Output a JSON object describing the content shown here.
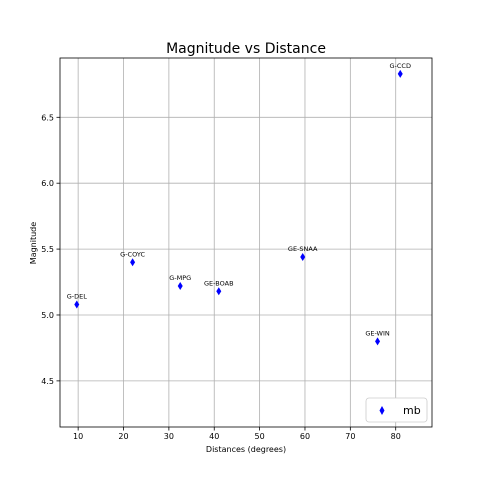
{
  "chart_data": {
    "type": "scatter",
    "title": "Magnitude vs Distance",
    "xlabel": "Distances (degrees)",
    "ylabel": "Magnitude",
    "xlim": [
      6,
      88
    ],
    "ylim": [
      4.15,
      6.95
    ],
    "xticks": [
      10,
      20,
      30,
      40,
      50,
      60,
      70,
      80
    ],
    "yticks": [
      4.5,
      5.0,
      5.5,
      6.0,
      6.5
    ],
    "ytick_labels": [
      "4.5",
      "5.0",
      "5.5",
      "6.0",
      "6.5"
    ],
    "grid": true,
    "legend_position": "lower-right",
    "series": [
      {
        "name": "mb",
        "color": "#0000ff",
        "marker": "thin-diamond",
        "points": [
          {
            "label": "G-DEL",
            "x": 9.7,
            "y": 5.08
          },
          {
            "label": "G-COYC",
            "x": 22.0,
            "y": 5.4
          },
          {
            "label": "G-MPG",
            "x": 32.5,
            "y": 5.22
          },
          {
            "label": "GE-BOAB",
            "x": 41.0,
            "y": 5.18
          },
          {
            "label": "GE-SNAA",
            "x": 59.5,
            "y": 5.44
          },
          {
            "label": "GE-WIN",
            "x": 76.0,
            "y": 4.8
          },
          {
            "label": "G-CCD",
            "x": 81.0,
            "y": 6.83
          }
        ]
      }
    ]
  }
}
